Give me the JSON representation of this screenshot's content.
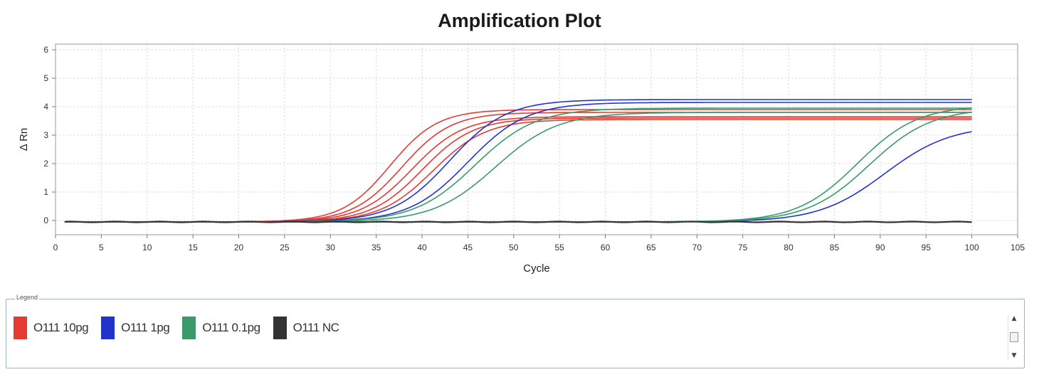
{
  "chart_data": {
    "type": "line",
    "title": "Amplification Plot",
    "xlabel": "Cycle",
    "ylabel": "Δ Rn",
    "xlim": [
      0,
      105
    ],
    "ylim": [
      -0.5,
      6.2
    ],
    "xticks": [
      0,
      5,
      10,
      15,
      20,
      25,
      30,
      35,
      40,
      45,
      50,
      55,
      60,
      65,
      70,
      75,
      80,
      85,
      90,
      95,
      100,
      105
    ],
    "yticks": [
      0,
      1,
      2,
      3,
      4,
      5,
      6
    ],
    "ytick_labels": [
      "0",
      "1",
      "2",
      "3",
      "4",
      "5",
      "6"
    ],
    "grid": true,
    "legend_title": "Legend",
    "legend_position": "bottom",
    "series": [
      {
        "name": "O111 10pg",
        "color": "#e53a32",
        "ct": 36.5,
        "plateau": 3.95,
        "slope": 2.6
      },
      {
        "name": "O111 10pg",
        "color": "#e53a32",
        "ct": 37.8,
        "plateau": 3.85,
        "slope": 2.7
      },
      {
        "name": "O111 10pg",
        "color": "#e53a32",
        "ct": 38.9,
        "plateau": 3.7,
        "slope": 2.8
      },
      {
        "name": "O111 10pg",
        "color": "#e53a32",
        "ct": 40.0,
        "plateau": 3.65,
        "slope": 2.8
      },
      {
        "name": "O111 10pg",
        "color": "#e53a32",
        "ct": 41.2,
        "plateau": 3.6,
        "slope": 2.9
      },
      {
        "name": "O111 1pg",
        "color": "#2233cc",
        "ct": 43.0,
        "plateau": 4.3,
        "slope": 3.1
      },
      {
        "name": "O111 1pg",
        "color": "#2233cc",
        "ct": 45.0,
        "plateau": 4.2,
        "slope": 3.2
      },
      {
        "name": "O111 1pg",
        "color": "#2233cc",
        "ct": 90.5,
        "plateau": 3.4,
        "slope": 3.6
      },
      {
        "name": "O111 0.1pg",
        "color": "#3a9a6a",
        "ct": 45.8,
        "plateau": 4.0,
        "slope": 3.3
      },
      {
        "name": "O111 0.1pg",
        "color": "#3a9a6a",
        "ct": 48.0,
        "plateau": 3.85,
        "slope": 3.4
      },
      {
        "name": "O111 0.1pg",
        "color": "#3a9a6a",
        "ct": 87.5,
        "plateau": 4.1,
        "slope": 3.3
      },
      {
        "name": "O111 0.1pg",
        "color": "#3a9a6a",
        "ct": 88.8,
        "plateau": 4.0,
        "slope": 3.4
      },
      {
        "name": "O111 NC",
        "color": "#333333",
        "ct": null,
        "plateau": 0,
        "slope": 1
      }
    ],
    "x_start": 1,
    "x_end": 100,
    "baseline": -0.05
  },
  "legend_entries": [
    {
      "label": "O111 10pg",
      "color": "#e53a32"
    },
    {
      "label": "O111 1pg",
      "color": "#2233cc"
    },
    {
      "label": "O111 0.1pg",
      "color": "#3a9a6a"
    },
    {
      "label": "O111 NC",
      "color": "#333333"
    }
  ]
}
